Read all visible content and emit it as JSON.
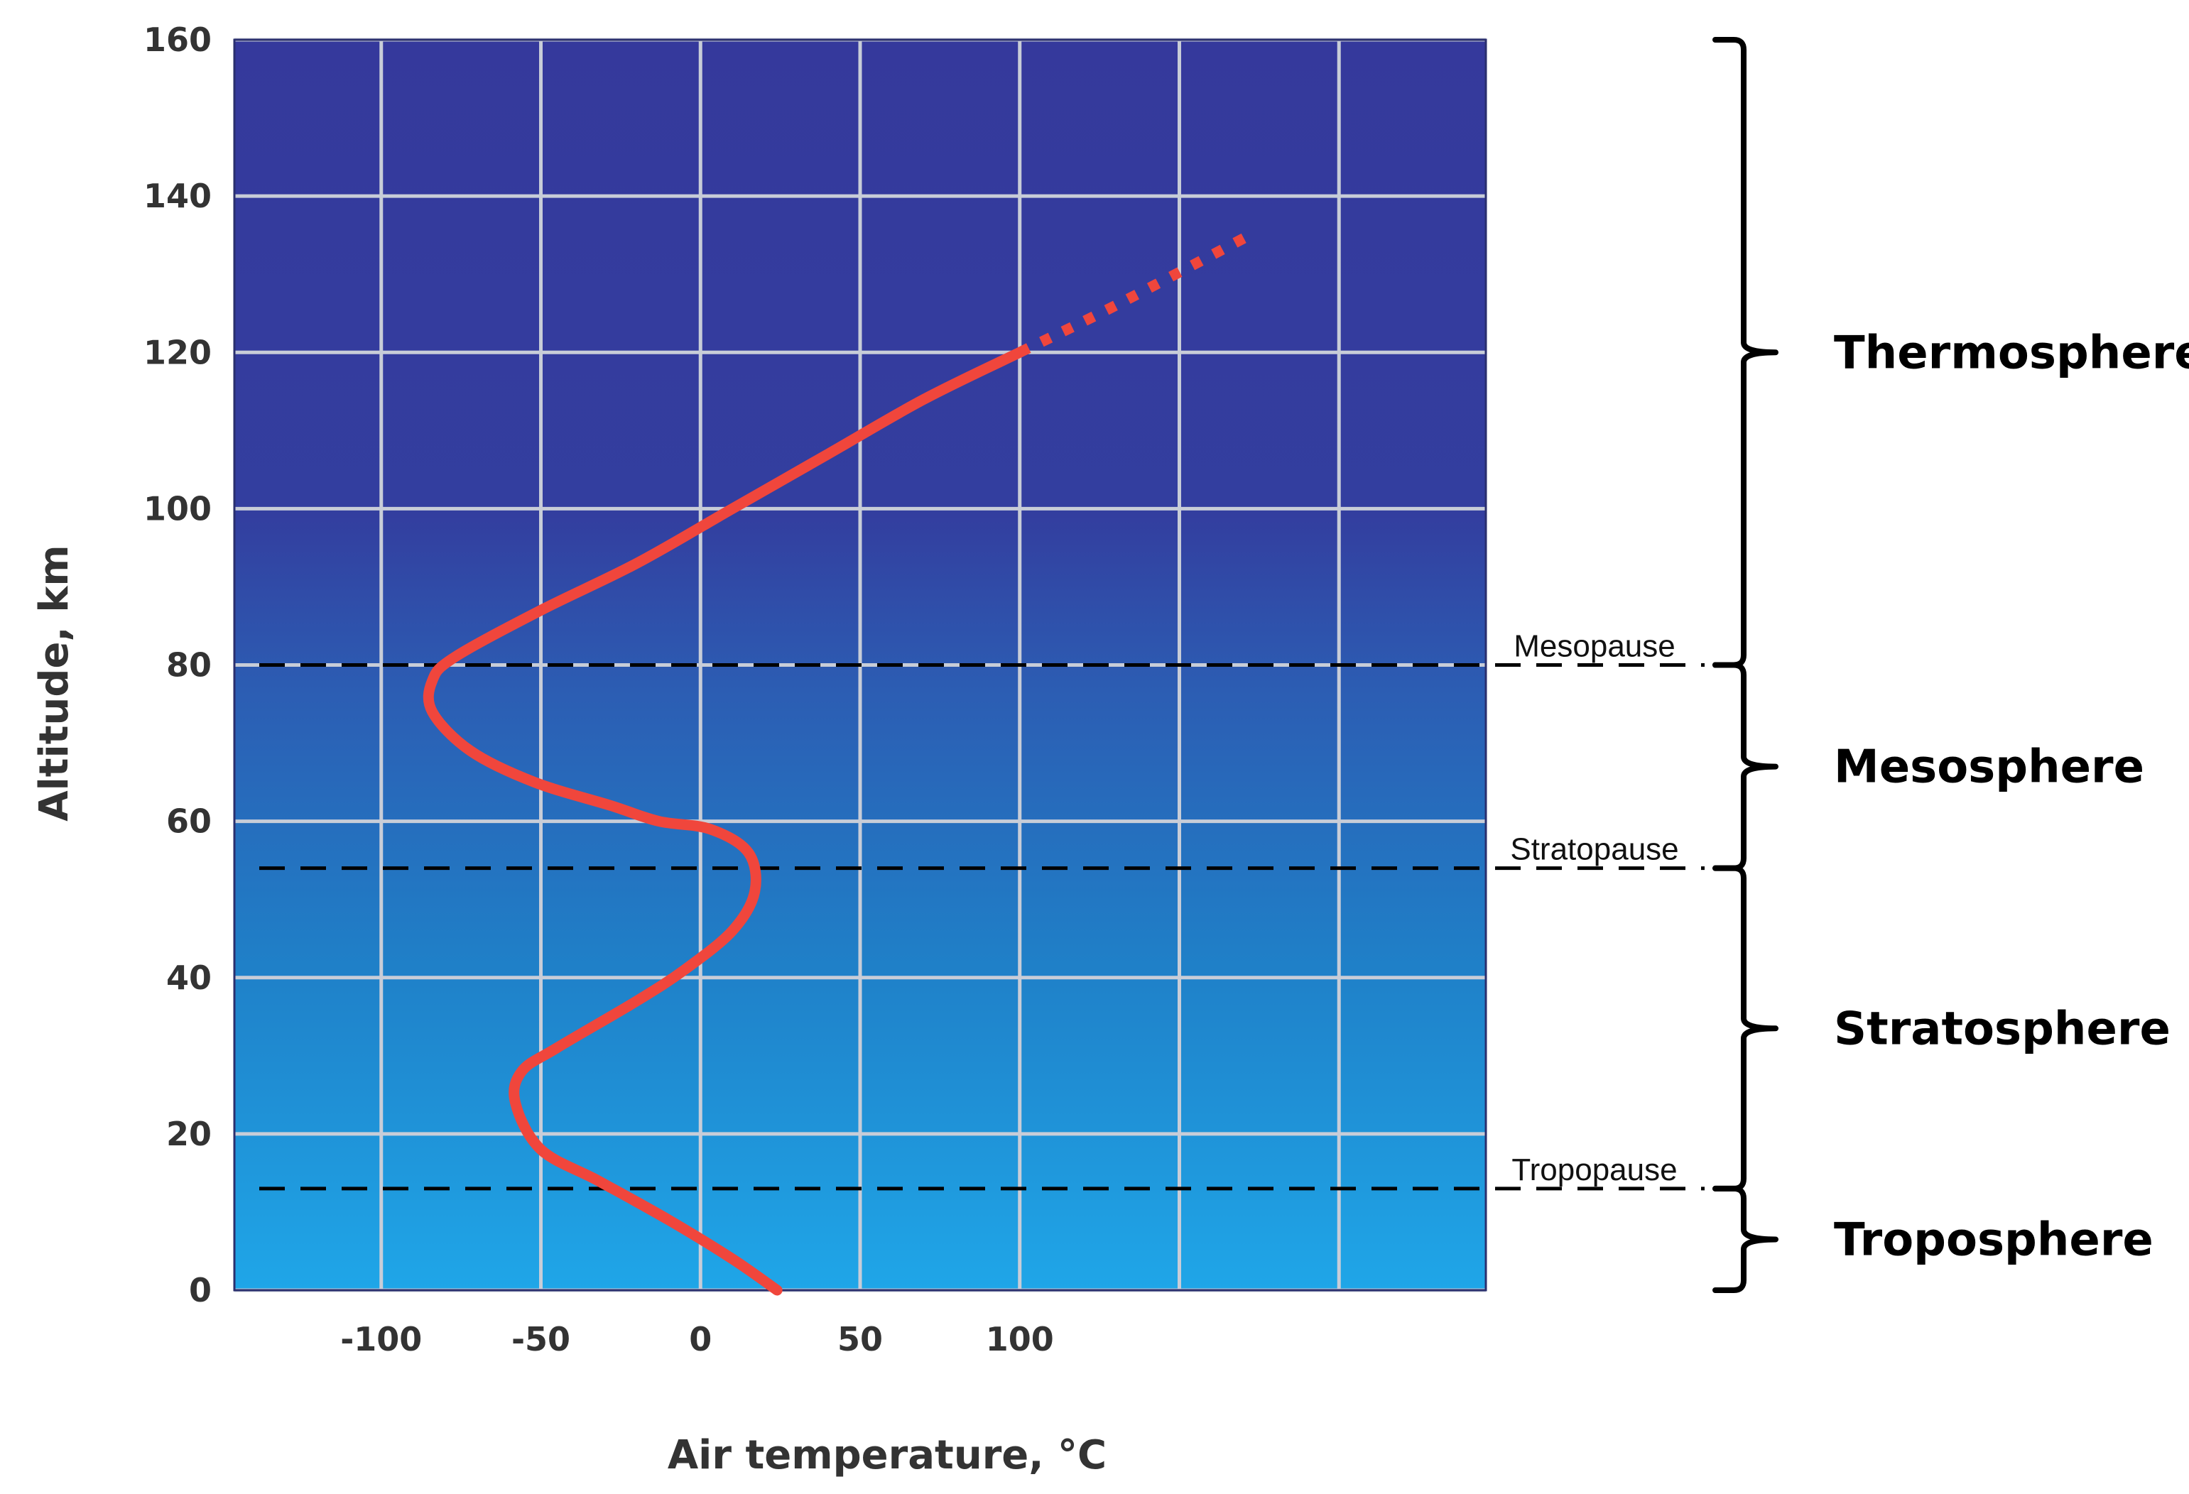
{
  "chart_data": {
    "type": "line",
    "title": "",
    "xlabel": "Air temperature, °C",
    "ylabel": "Altitude, km",
    "xlim": [
      -146,
      246
    ],
    "ylim": [
      0,
      160
    ],
    "x_ticks": [
      -100,
      -50,
      0,
      50,
      100
    ],
    "x_tick_labels": [
      "-100",
      "-50",
      "0",
      "50",
      "100"
    ],
    "x_grid": [
      -100,
      -50,
      0,
      50,
      100,
      150,
      200
    ],
    "y_ticks": [
      0,
      20,
      40,
      60,
      80,
      100,
      120,
      140,
      160
    ],
    "y_tick_labels": [
      "0",
      "20",
      "40",
      "60",
      "80",
      "100",
      "120",
      "140",
      "160"
    ],
    "grid": true,
    "legend": "none",
    "colors": {
      "background_top": "#35399c",
      "background_bottom": "#1fa6e8",
      "curve": "#f0463c",
      "grid": "#c8cdd8",
      "boundary_lines": "#000000"
    },
    "series": [
      {
        "style": "solid",
        "points": [
          [
            24,
            0
          ],
          [
            10,
            4
          ],
          [
            -10,
            9
          ],
          [
            -32,
            14
          ],
          [
            -50,
            18
          ],
          [
            -58,
            24
          ],
          [
            -56,
            28
          ],
          [
            -45,
            31
          ],
          [
            -20,
            37
          ],
          [
            -5,
            41
          ],
          [
            10,
            46
          ],
          [
            17,
            51
          ],
          [
            15,
            56
          ],
          [
            3,
            59
          ],
          [
            -13,
            60
          ],
          [
            -28,
            62
          ],
          [
            -52,
            65
          ],
          [
            -72,
            69
          ],
          [
            -84,
            74
          ],
          [
            -84,
            78
          ],
          [
            -77,
            81
          ],
          [
            -50,
            87
          ],
          [
            -20,
            93
          ],
          [
            10,
            100
          ],
          [
            40,
            107
          ],
          [
            70,
            114
          ],
          [
            100,
            120
          ]
        ]
      },
      {
        "style": "dotted",
        "points": [
          [
            100,
            120
          ],
          [
            130,
            126
          ],
          [
            172,
            135
          ]
        ]
      }
    ],
    "boundaries": [
      {
        "name": "Tropopause",
        "altitude": 13
      },
      {
        "name": "Stratopause",
        "altitude": 54
      },
      {
        "name": "Mesopause",
        "altitude": 80
      }
    ],
    "layers": [
      {
        "name": "Troposphere",
        "from": 0,
        "to": 13
      },
      {
        "name": "Stratosphere",
        "from": 13,
        "to": 54
      },
      {
        "name": "Mesosphere",
        "from": 54,
        "to": 80
      },
      {
        "name": "Thermosphere",
        "from": 80,
        "to": 160
      }
    ]
  }
}
